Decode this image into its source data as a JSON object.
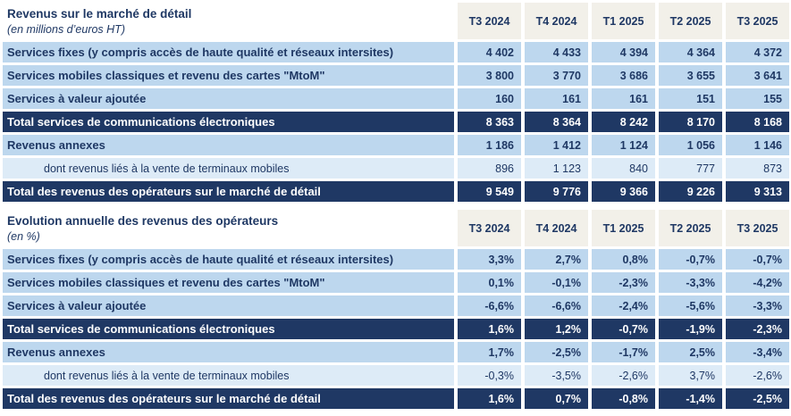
{
  "colors": {
    "navy": "#1F3864",
    "row_blue": "#BDD7EE",
    "row_light_blue": "#DDEBF7",
    "header_cream": "#F2F0E9",
    "total_row_text": "#FFFFFF"
  },
  "chart_data": [
    {
      "type": "table",
      "title": "Revenus sur le marché de détail",
      "subtitle": "(en millions d’euros HT)",
      "columns": [
        "T3 2024",
        "T4 2024",
        "T1 2025",
        "T2 2025",
        "T3 2025"
      ],
      "rows": [
        {
          "label": "Services fixes (y compris accès de haute qualité et réseaux intersites)",
          "style": "normal",
          "values": [
            "4 402",
            "4 433",
            "4 394",
            "4 364",
            "4 372"
          ]
        },
        {
          "label": "Services mobiles classiques et revenu des cartes \"MtoM\"",
          "style": "normal",
          "values": [
            "3 800",
            "3 770",
            "3 686",
            "3 655",
            "3 641"
          ]
        },
        {
          "label": "Services à valeur ajoutée",
          "style": "normal",
          "values": [
            "160",
            "161",
            "161",
            "151",
            "155"
          ]
        },
        {
          "label": "Total services de communications électroniques",
          "style": "total",
          "values": [
            "8 363",
            "8 364",
            "8 242",
            "8 170",
            "8 168"
          ]
        },
        {
          "label": "Revenus annexes",
          "style": "normal",
          "values": [
            "1 186",
            "1 412",
            "1 124",
            "1 056",
            "1 146"
          ]
        },
        {
          "label": "dont revenus liés à la vente de terminaux mobiles",
          "style": "sub",
          "values": [
            "896",
            "1 123",
            "840",
            "777",
            "873"
          ]
        },
        {
          "label": "Total des revenus des opérateurs sur le marché de détail",
          "style": "total",
          "values": [
            "9 549",
            "9 776",
            "9 366",
            "9 226",
            "9 313"
          ]
        }
      ]
    },
    {
      "type": "table",
      "title": "Evolution annuelle des revenus des opérateurs",
      "subtitle": "(en %)",
      "columns": [
        "T3 2024",
        "T4 2024",
        "T1 2025",
        "T2 2025",
        "T3 2025"
      ],
      "rows": [
        {
          "label": "Services fixes (y compris accès de haute qualité et réseaux intersites)",
          "style": "normal",
          "values": [
            "3,3%",
            "2,7%",
            "0,8%",
            "-0,7%",
            "-0,7%"
          ]
        },
        {
          "label": "Services mobiles classiques et revenu des cartes \"MtoM\"",
          "style": "normal",
          "values": [
            "0,1%",
            "-0,1%",
            "-2,3%",
            "-3,3%",
            "-4,2%"
          ]
        },
        {
          "label": "Services à valeur ajoutée",
          "style": "normal",
          "values": [
            "-6,6%",
            "-6,6%",
            "-2,4%",
            "-5,6%",
            "-3,3%"
          ]
        },
        {
          "label": "Total services de communications électroniques",
          "style": "total",
          "values": [
            "1,6%",
            "1,2%",
            "-0,7%",
            "-1,9%",
            "-2,3%"
          ]
        },
        {
          "label": "Revenus annexes",
          "style": "normal",
          "values": [
            "1,7%",
            "-2,5%",
            "-1,7%",
            "2,5%",
            "-3,4%"
          ]
        },
        {
          "label": "dont revenus liés à la vente de terminaux mobiles",
          "style": "sub",
          "values": [
            "-0,3%",
            "-3,5%",
            "-2,6%",
            "3,7%",
            "-2,6%"
          ]
        },
        {
          "label": "Total des revenus des opérateurs sur le marché de détail",
          "style": "total",
          "values": [
            "1,6%",
            "0,7%",
            "-0,8%",
            "-1,4%",
            "-2,5%"
          ]
        }
      ]
    }
  ]
}
